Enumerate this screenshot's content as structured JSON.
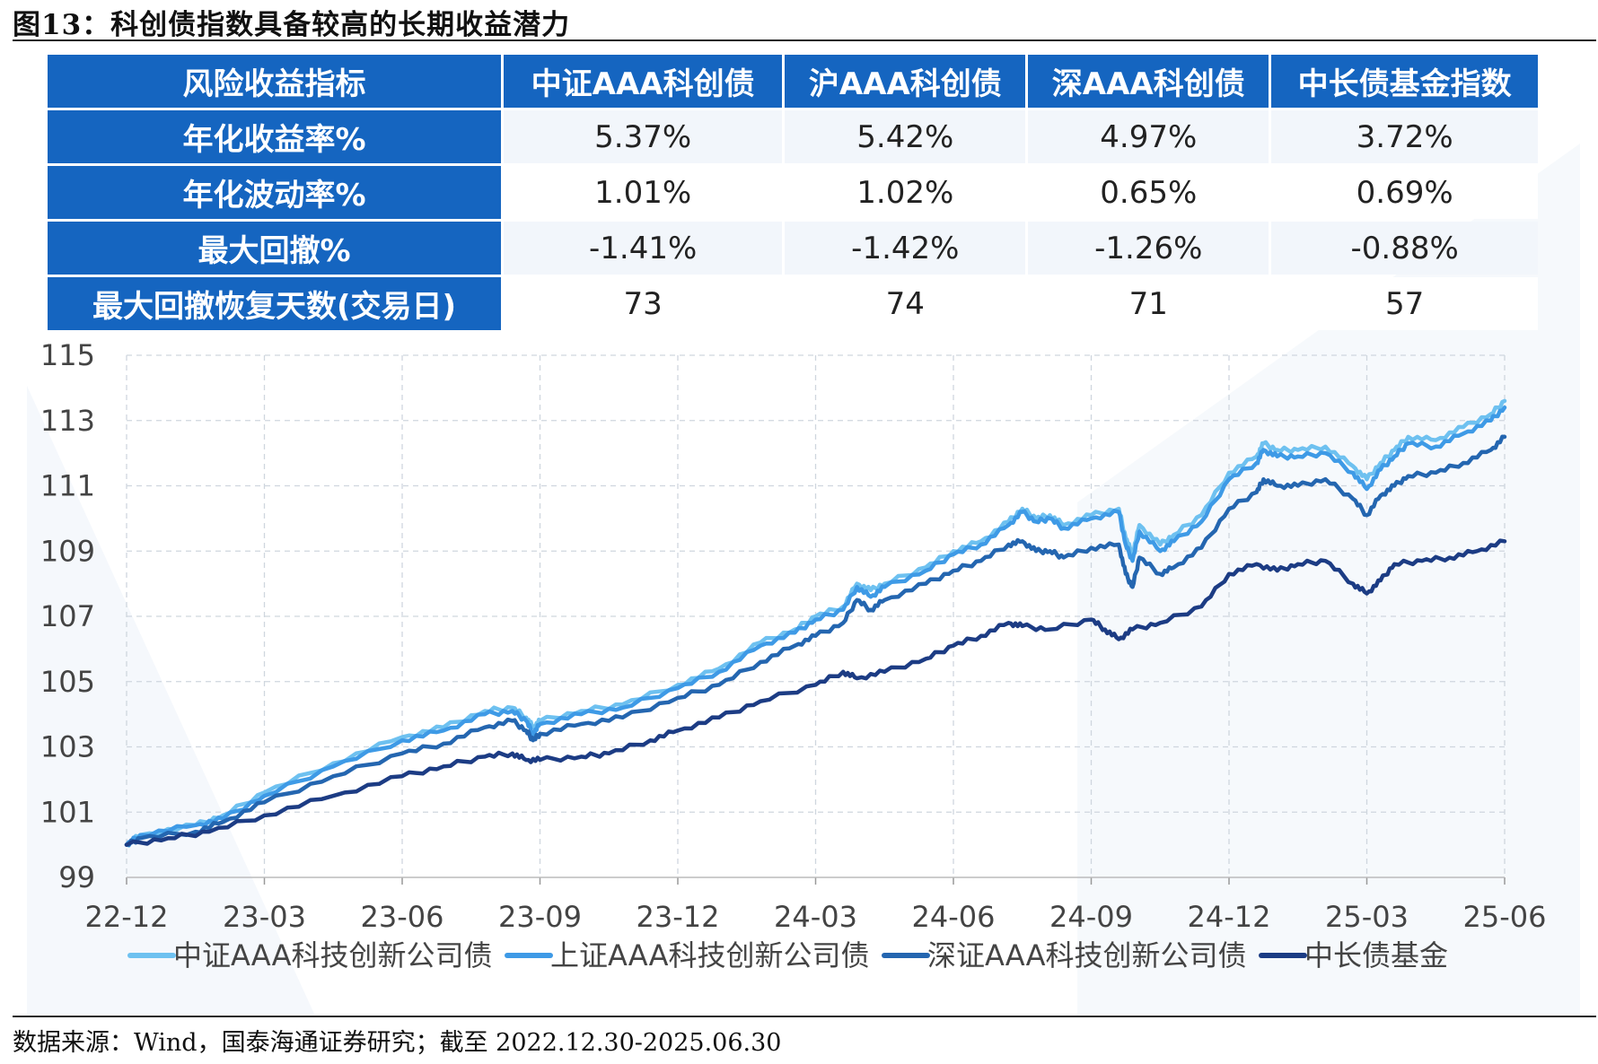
{
  "title": "图13：科创债指数具备较高的长期收益潜力",
  "source": "数据来源：Wind，国泰海通证券研究；截至 2022.12.30-2025.06.30",
  "table": {
    "headers": [
      "风险收益指标",
      "中证AAA科创债",
      "沪AAA科创债",
      "深AAA科创债",
      "中长债基金指数"
    ],
    "rows": [
      [
        "年化收益率%",
        "5.37%",
        "5.42%",
        "4.97%",
        "3.72%"
      ],
      [
        "年化波动率%",
        "1.01%",
        "1.02%",
        "0.65%",
        "0.69%"
      ],
      [
        "最大回撤%",
        "-1.41%",
        "-1.42%",
        "-1.26%",
        "-0.88%"
      ],
      [
        "最大回撤恢复天数(交易日)",
        "73",
        "74",
        "71",
        "57"
      ]
    ]
  },
  "chart_data": {
    "type": "line",
    "title": "",
    "xlabel": "",
    "ylabel": "",
    "ylim": [
      99,
      115
    ],
    "yticks": [
      99,
      101,
      103,
      105,
      107,
      109,
      111,
      113,
      115
    ],
    "xticks": [
      "22-12",
      "23-03",
      "23-06",
      "23-09",
      "23-12",
      "24-03",
      "24-06",
      "24-09",
      "24-12",
      "25-03",
      "25-06"
    ],
    "x_range": [
      0,
      10
    ],
    "grid": "dashed",
    "legend": "bottom",
    "series": [
      {
        "name": "中证AAA科技创新公司债",
        "color": "#6ec1f0",
        "points": [
          [
            0,
            100.0
          ],
          [
            0.1,
            100.3
          ],
          [
            0.5,
            100.6
          ],
          [
            0.7,
            100.9
          ],
          [
            1.0,
            101.6
          ],
          [
            1.5,
            102.5
          ],
          [
            2.0,
            103.3
          ],
          [
            2.3,
            103.6
          ],
          [
            2.6,
            104.1
          ],
          [
            2.8,
            104.2
          ],
          [
            2.9,
            103.9
          ],
          [
            2.95,
            103.6
          ],
          [
            3.0,
            103.8
          ],
          [
            3.3,
            104.1
          ],
          [
            3.6,
            104.3
          ],
          [
            4.0,
            104.9
          ],
          [
            4.3,
            105.4
          ],
          [
            4.6,
            106.2
          ],
          [
            4.85,
            106.6
          ],
          [
            5.0,
            107.0
          ],
          [
            5.2,
            107.3
          ],
          [
            5.3,
            108.0
          ],
          [
            5.4,
            107.8
          ],
          [
            5.5,
            108.0
          ],
          [
            5.8,
            108.5
          ],
          [
            6.0,
            109.0
          ],
          [
            6.2,
            109.3
          ],
          [
            6.4,
            109.9
          ],
          [
            6.5,
            110.3
          ],
          [
            6.6,
            110.0
          ],
          [
            6.7,
            110.1
          ],
          [
            6.8,
            109.8
          ],
          [
            7.0,
            110.1
          ],
          [
            7.2,
            110.3
          ],
          [
            7.25,
            109.4
          ],
          [
            7.3,
            108.9
          ],
          [
            7.35,
            109.8
          ],
          [
            7.5,
            109.2
          ],
          [
            7.6,
            109.5
          ],
          [
            7.8,
            110.1
          ],
          [
            8.0,
            111.4
          ],
          [
            8.2,
            111.9
          ],
          [
            8.25,
            112.3
          ],
          [
            8.35,
            112.1
          ],
          [
            8.5,
            112.1
          ],
          [
            8.7,
            112.2
          ],
          [
            8.9,
            111.6
          ],
          [
            9.0,
            111.2
          ],
          [
            9.1,
            111.7
          ],
          [
            9.2,
            112.1
          ],
          [
            9.3,
            112.5
          ],
          [
            9.5,
            112.4
          ],
          [
            9.7,
            112.8
          ],
          [
            9.9,
            113.2
          ],
          [
            10.0,
            113.6
          ]
        ]
      },
      {
        "name": "上证AAA科技创新公司债",
        "color": "#3e9ae6",
        "points": [
          [
            0,
            100.0
          ],
          [
            0.1,
            100.3
          ],
          [
            0.5,
            100.6
          ],
          [
            0.7,
            100.8
          ],
          [
            1.0,
            101.5
          ],
          [
            1.5,
            102.4
          ],
          [
            2.0,
            103.2
          ],
          [
            2.3,
            103.5
          ],
          [
            2.6,
            104.0
          ],
          [
            2.8,
            104.1
          ],
          [
            2.9,
            103.8
          ],
          [
            2.95,
            103.4
          ],
          [
            3.0,
            103.7
          ],
          [
            3.3,
            104.0
          ],
          [
            3.6,
            104.2
          ],
          [
            4.0,
            104.8
          ],
          [
            4.3,
            105.3
          ],
          [
            4.6,
            106.1
          ],
          [
            4.85,
            106.5
          ],
          [
            5.0,
            106.9
          ],
          [
            5.2,
            107.2
          ],
          [
            5.3,
            107.9
          ],
          [
            5.4,
            107.6
          ],
          [
            5.5,
            107.9
          ],
          [
            5.8,
            108.4
          ],
          [
            6.0,
            108.9
          ],
          [
            6.2,
            109.2
          ],
          [
            6.4,
            109.8
          ],
          [
            6.5,
            110.2
          ],
          [
            6.6,
            109.9
          ],
          [
            6.7,
            110.0
          ],
          [
            6.8,
            109.7
          ],
          [
            7.0,
            110.0
          ],
          [
            7.2,
            110.2
          ],
          [
            7.25,
            109.2
          ],
          [
            7.3,
            108.7
          ],
          [
            7.35,
            109.6
          ],
          [
            7.5,
            109.0
          ],
          [
            7.6,
            109.3
          ],
          [
            7.8,
            109.9
          ],
          [
            8.0,
            111.2
          ],
          [
            8.2,
            111.7
          ],
          [
            8.25,
            112.1
          ],
          [
            8.35,
            111.9
          ],
          [
            8.5,
            111.9
          ],
          [
            8.7,
            112.0
          ],
          [
            8.9,
            111.4
          ],
          [
            9.0,
            110.9
          ],
          [
            9.1,
            111.5
          ],
          [
            9.2,
            111.9
          ],
          [
            9.3,
            112.3
          ],
          [
            9.5,
            112.2
          ],
          [
            9.7,
            112.6
          ],
          [
            9.9,
            113.0
          ],
          [
            10.0,
            113.4
          ]
        ]
      },
      {
        "name": "深证AAA科技创新公司债",
        "color": "#2466b0",
        "points": [
          [
            0,
            100.0
          ],
          [
            0.1,
            100.2
          ],
          [
            0.5,
            100.4
          ],
          [
            0.7,
            100.7
          ],
          [
            1.0,
            101.3
          ],
          [
            1.5,
            102.1
          ],
          [
            2.0,
            102.8
          ],
          [
            2.3,
            103.1
          ],
          [
            2.6,
            103.6
          ],
          [
            2.8,
            103.8
          ],
          [
            2.9,
            103.5
          ],
          [
            2.95,
            103.2
          ],
          [
            3.0,
            103.4
          ],
          [
            3.3,
            103.7
          ],
          [
            3.6,
            103.9
          ],
          [
            4.0,
            104.5
          ],
          [
            4.3,
            104.9
          ],
          [
            4.6,
            105.6
          ],
          [
            4.85,
            106.1
          ],
          [
            5.0,
            106.4
          ],
          [
            5.2,
            106.8
          ],
          [
            5.3,
            107.5
          ],
          [
            5.4,
            107.2
          ],
          [
            5.5,
            107.5
          ],
          [
            5.8,
            108.0
          ],
          [
            6.0,
            108.4
          ],
          [
            6.2,
            108.7
          ],
          [
            6.4,
            109.2
          ],
          [
            6.5,
            109.3
          ],
          [
            6.6,
            109.0
          ],
          [
            6.7,
            109.0
          ],
          [
            6.8,
            108.8
          ],
          [
            7.0,
            109.1
          ],
          [
            7.2,
            109.2
          ],
          [
            7.25,
            108.3
          ],
          [
            7.3,
            107.9
          ],
          [
            7.35,
            108.8
          ],
          [
            7.5,
            108.3
          ],
          [
            7.6,
            108.5
          ],
          [
            7.8,
            109.1
          ],
          [
            8.0,
            110.3
          ],
          [
            8.2,
            110.8
          ],
          [
            8.25,
            111.2
          ],
          [
            8.35,
            111.0
          ],
          [
            8.5,
            111.0
          ],
          [
            8.7,
            111.2
          ],
          [
            8.9,
            110.6
          ],
          [
            9.0,
            110.1
          ],
          [
            9.1,
            110.7
          ],
          [
            9.2,
            111.0
          ],
          [
            9.3,
            111.3
          ],
          [
            9.5,
            111.4
          ],
          [
            9.7,
            111.7
          ],
          [
            9.9,
            112.1
          ],
          [
            10.0,
            112.5
          ]
        ]
      },
      {
        "name": "中长债基金",
        "color": "#1c3c84",
        "points": [
          [
            0,
            100.0
          ],
          [
            0.3,
            100.2
          ],
          [
            0.6,
            100.4
          ],
          [
            1.0,
            100.9
          ],
          [
            1.5,
            101.5
          ],
          [
            2.0,
            102.1
          ],
          [
            2.3,
            102.4
          ],
          [
            2.6,
            102.7
          ],
          [
            2.8,
            102.8
          ],
          [
            2.9,
            102.6
          ],
          [
            3.0,
            102.6
          ],
          [
            3.3,
            102.7
          ],
          [
            3.5,
            102.8
          ],
          [
            3.8,
            103.2
          ],
          [
            4.0,
            103.5
          ],
          [
            4.3,
            103.9
          ],
          [
            4.6,
            104.4
          ],
          [
            5.0,
            104.9
          ],
          [
            5.2,
            105.3
          ],
          [
            5.3,
            105.1
          ],
          [
            5.5,
            105.3
          ],
          [
            5.8,
            105.7
          ],
          [
            6.0,
            106.1
          ],
          [
            6.2,
            106.4
          ],
          [
            6.4,
            106.8
          ],
          [
            6.5,
            106.7
          ],
          [
            6.7,
            106.6
          ],
          [
            7.0,
            106.9
          ],
          [
            7.1,
            106.6
          ],
          [
            7.2,
            106.3
          ],
          [
            7.3,
            106.6
          ],
          [
            7.5,
            106.8
          ],
          [
            7.8,
            107.3
          ],
          [
            8.0,
            108.3
          ],
          [
            8.2,
            108.6
          ],
          [
            8.35,
            108.4
          ],
          [
            8.5,
            108.6
          ],
          [
            8.7,
            108.7
          ],
          [
            8.9,
            108.0
          ],
          [
            9.0,
            107.7
          ],
          [
            9.1,
            108.1
          ],
          [
            9.2,
            108.6
          ],
          [
            9.4,
            108.7
          ],
          [
            9.6,
            108.8
          ],
          [
            9.8,
            109.0
          ],
          [
            10.0,
            109.3
          ]
        ]
      }
    ]
  }
}
